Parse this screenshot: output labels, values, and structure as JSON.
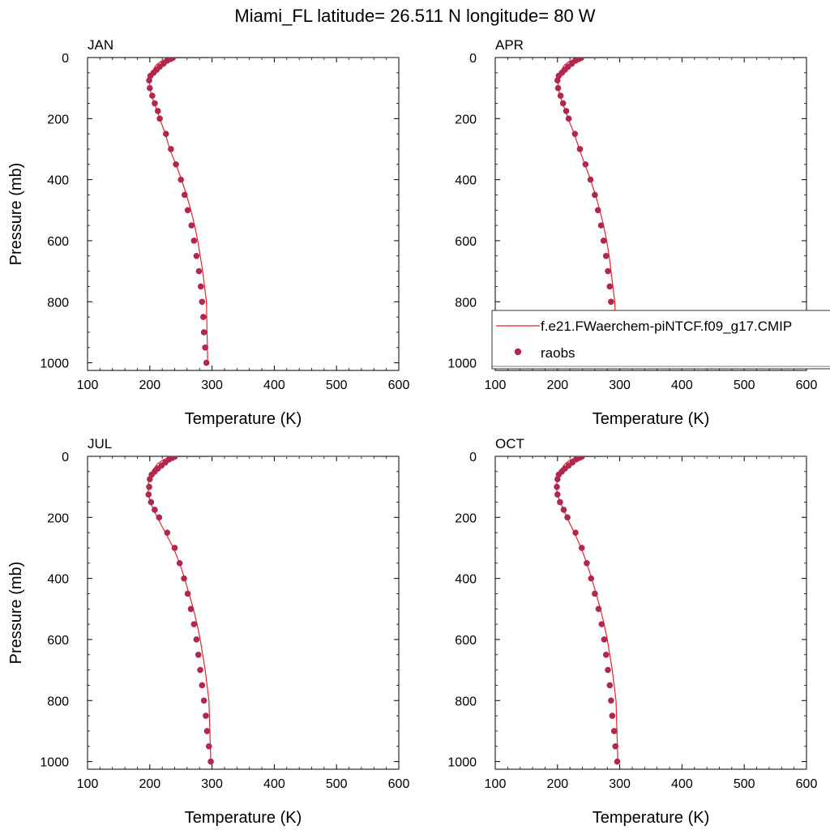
{
  "figure": {
    "title": "Miami_FL  latitude= 26.511 N longitude= 80 W"
  },
  "legend": {
    "model_label": "f.e21.FWaerchem-piNTCF.f09_g17.CMIP",
    "obs_label": "raobs",
    "placement": "APR panel, lower right",
    "model_color": "#e8232a",
    "obs_color": "#b0284f"
  },
  "chart_data": [
    {
      "type": "line",
      "panel": "JAN",
      "title": "JAN",
      "xlabel": "Temperature (K)",
      "ylabel": "Pressure (mb)",
      "xlim": [
        100,
        600
      ],
      "ylim": [
        1025,
        0
      ],
      "y_reversed": true,
      "xticks": [
        100,
        200,
        300,
        400,
        500,
        600
      ],
      "yticks": [
        0,
        200,
        400,
        600,
        800,
        1000
      ],
      "grid": false,
      "series": [
        {
          "name": "f.e21.FWaerchem-piNTCF.f09_g17.CMIP",
          "kind": "line",
          "x": [
            600,
            300,
            240,
            232,
            224,
            218,
            210,
            204,
            200,
            200,
            203,
            207,
            212,
            216,
            225,
            232,
            242,
            251,
            259,
            266,
            272,
            277,
            281,
            285,
            288,
            291,
            293
          ],
          "y": [
            0,
            0.5,
            1,
            2,
            6,
            12,
            25,
            45,
            75,
            100,
            125,
            150,
            175,
            200,
            250,
            300,
            350,
            400,
            450,
            500,
            550,
            600,
            650,
            700,
            750,
            800,
            1000
          ]
        },
        {
          "name": "raobs",
          "kind": "scatter",
          "x": [
            237,
            233,
            228,
            222,
            216,
            211,
            206,
            201,
            199,
            200,
            204,
            208,
            213,
            216,
            226,
            234,
            242,
            250,
            256,
            261,
            267,
            271,
            275,
            279,
            282,
            284,
            286,
            287,
            289,
            291
          ],
          "y": [
            1,
            5,
            10,
            20,
            30,
            40,
            50,
            60,
            75,
            100,
            125,
            150,
            175,
            200,
            250,
            300,
            350,
            400,
            450,
            500,
            550,
            600,
            650,
            700,
            750,
            800,
            850,
            900,
            950,
            1000
          ]
        }
      ]
    },
    {
      "type": "line",
      "panel": "APR",
      "title": "APR",
      "xlabel": "Temperature (K)",
      "ylabel": "",
      "xlim": [
        100,
        600
      ],
      "ylim": [
        1025,
        0
      ],
      "y_reversed": true,
      "xticks": [
        100,
        200,
        300,
        400,
        500,
        600
      ],
      "yticks": [
        0,
        200,
        400,
        600,
        800,
        1000
      ],
      "grid": false,
      "series": [
        {
          "name": "f.e21.FWaerchem-piNTCF.f09_g17.CMIP",
          "kind": "line",
          "x": [
            575,
            300,
            240,
            233,
            226,
            219,
            211,
            205,
            201,
            201,
            204,
            208,
            213,
            217,
            227,
            235,
            244,
            253,
            261,
            268,
            274,
            279,
            283,
            286,
            289,
            292,
            295
          ],
          "y": [
            0,
            0.5,
            1,
            2,
            6,
            12,
            25,
            45,
            75,
            100,
            125,
            150,
            175,
            200,
            250,
            300,
            350,
            400,
            450,
            500,
            550,
            600,
            650,
            700,
            750,
            800,
            1000
          ]
        },
        {
          "name": "raobs",
          "kind": "scatter",
          "x": [
            238,
            234,
            229,
            223,
            217,
            212,
            207,
            202,
            200,
            201,
            205,
            209,
            214,
            218,
            228,
            236,
            245,
            253,
            260,
            265,
            270,
            274,
            278,
            281,
            284,
            286,
            288,
            290,
            292,
            294
          ],
          "y": [
            1,
            5,
            10,
            20,
            30,
            40,
            50,
            60,
            75,
            100,
            125,
            150,
            175,
            200,
            250,
            300,
            350,
            400,
            450,
            500,
            550,
            600,
            650,
            700,
            750,
            800,
            850,
            900,
            950,
            1000
          ]
        }
      ]
    },
    {
      "type": "line",
      "panel": "JUL",
      "title": "JUL",
      "xlabel": "Temperature (K)",
      "ylabel": "Pressure (mb)",
      "xlim": [
        100,
        600
      ],
      "ylim": [
        1025,
        0
      ],
      "y_reversed": true,
      "xticks": [
        100,
        200,
        300,
        400,
        500,
        600
      ],
      "yticks": [
        0,
        200,
        400,
        600,
        800,
        1000
      ],
      "grid": false,
      "series": [
        {
          "name": "f.e21.FWaerchem-piNTCF.f09_g17.CMIP",
          "kind": "line",
          "x": [
            560,
            300,
            243,
            236,
            228,
            221,
            212,
            205,
            199,
            197,
            198,
            201,
            206,
            212,
            225,
            238,
            248,
            256,
            263,
            270,
            276,
            281,
            285,
            289,
            292,
            295,
            298
          ],
          "y": [
            0,
            0.5,
            1,
            2,
            6,
            12,
            25,
            45,
            75,
            100,
            125,
            150,
            175,
            200,
            250,
            300,
            350,
            400,
            450,
            500,
            550,
            600,
            650,
            700,
            750,
            800,
            1000
          ]
        },
        {
          "name": "raobs",
          "kind": "scatter",
          "x": [
            240,
            236,
            231,
            225,
            219,
            213,
            208,
            203,
            200,
            199,
            198,
            202,
            208,
            215,
            228,
            240,
            248,
            255,
            261,
            266,
            271,
            275,
            278,
            281,
            284,
            287,
            290,
            292,
            295,
            298
          ],
          "y": [
            1,
            5,
            10,
            20,
            30,
            40,
            50,
            60,
            75,
            100,
            125,
            150,
            175,
            200,
            250,
            300,
            350,
            400,
            450,
            500,
            550,
            600,
            650,
            700,
            750,
            800,
            850,
            900,
            950,
            1000
          ]
        }
      ]
    },
    {
      "type": "line",
      "panel": "OCT",
      "title": "OCT",
      "xlabel": "Temperature (K)",
      "ylabel": "",
      "xlim": [
        100,
        600
      ],
      "ylim": [
        1025,
        0
      ],
      "y_reversed": true,
      "xticks": [
        100,
        200,
        300,
        400,
        500,
        600
      ],
      "yticks": [
        0,
        200,
        400,
        600,
        800,
        1000
      ],
      "grid": false,
      "series": [
        {
          "name": "f.e21.FWaerchem-piNTCF.f09_g17.CMIP",
          "kind": "line",
          "x": [
            600,
            300,
            240,
            234,
            227,
            220,
            212,
            205,
            200,
            198,
            200,
            204,
            210,
            215,
            227,
            238,
            247,
            255,
            262,
            269,
            275,
            280,
            284,
            288,
            291,
            294,
            297
          ],
          "y": [
            0,
            0.5,
            1,
            2,
            6,
            12,
            25,
            45,
            75,
            100,
            125,
            150,
            175,
            200,
            250,
            300,
            350,
            400,
            450,
            500,
            550,
            600,
            650,
            700,
            750,
            800,
            1000
          ]
        },
        {
          "name": "raobs",
          "kind": "scatter",
          "x": [
            239,
            235,
            230,
            224,
            218,
            212,
            207,
            202,
            200,
            199,
            200,
            204,
            210,
            216,
            229,
            239,
            247,
            254,
            260,
            266,
            271,
            275,
            278,
            281,
            284,
            286,
            288,
            291,
            293,
            296
          ],
          "y": [
            1,
            5,
            10,
            20,
            30,
            40,
            50,
            60,
            75,
            100,
            125,
            150,
            175,
            200,
            250,
            300,
            350,
            400,
            450,
            500,
            550,
            600,
            650,
            700,
            750,
            800,
            850,
            900,
            950,
            1000
          ]
        }
      ]
    }
  ]
}
